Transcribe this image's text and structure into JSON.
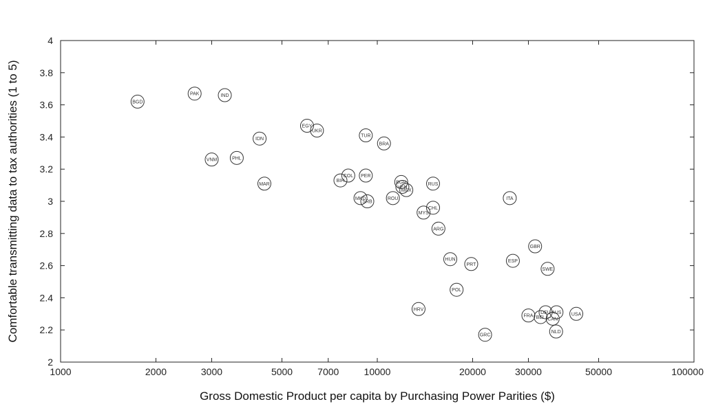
{
  "chart_data": {
    "type": "scatter",
    "title": "",
    "xlabel": "Gross Domestic Product per capita by Purchasing Power Parities ($)",
    "ylabel": "Comfortable transmitting data to tax authorities (1 to 5)",
    "xscale": "log",
    "xlim": [
      1000,
      100000
    ],
    "ylim": [
      2,
      4
    ],
    "grid": false,
    "xticks": [
      1000,
      2000,
      3000,
      5000,
      7000,
      10000,
      20000,
      30000,
      50000,
      100000
    ],
    "xtick_labels": [
      "1000",
      "2000",
      "3000",
      "5000",
      "7000",
      "10000",
      "20000",
      "30000",
      "50000",
      "100000"
    ],
    "yticks": [
      2,
      2.2,
      2.4,
      2.6,
      2.8,
      3,
      3.2,
      3.4,
      3.6,
      3.8,
      4
    ],
    "ytick_labels": [
      "2",
      "2.2",
      "2.4",
      "2.6",
      "2.8",
      "3",
      "3.2",
      "3.4",
      "3.6",
      "3.8",
      "4"
    ],
    "points": [
      {
        "label": "BGD",
        "x": 1750,
        "y": 3.62
      },
      {
        "label": "PAK",
        "x": 2650,
        "y": 3.67
      },
      {
        "label": "IND",
        "x": 3300,
        "y": 3.66
      },
      {
        "label": "VNM",
        "x": 3000,
        "y": 3.26
      },
      {
        "label": "PHL",
        "x": 3600,
        "y": 3.27
      },
      {
        "label": "IDN",
        "x": 4250,
        "y": 3.39
      },
      {
        "label": "MAR",
        "x": 4400,
        "y": 3.11
      },
      {
        "label": "EGY",
        "x": 6000,
        "y": 3.47
      },
      {
        "label": "UKR",
        "x": 6450,
        "y": 3.44
      },
      {
        "label": "TUR",
        "x": 9200,
        "y": 3.41
      },
      {
        "label": "BRA",
        "x": 10500,
        "y": 3.36
      },
      {
        "label": "COL",
        "x": 8100,
        "y": 3.16
      },
      {
        "label": "BIH",
        "x": 7650,
        "y": 3.13
      },
      {
        "label": "PER",
        "x": 9200,
        "y": 3.16
      },
      {
        "label": "BGR",
        "x": 11900,
        "y": 3.12
      },
      {
        "label": "VEN",
        "x": 12000,
        "y": 3.09
      },
      {
        "label": "MEX",
        "x": 12350,
        "y": 3.07
      },
      {
        "label": "RUS",
        "x": 15000,
        "y": 3.11
      },
      {
        "label": "MKD",
        "x": 8850,
        "y": 3.02
      },
      {
        "label": "SRB",
        "x": 9300,
        "y": 3.0
      },
      {
        "label": "ROU",
        "x": 11200,
        "y": 3.02
      },
      {
        "label": "MYS",
        "x": 14000,
        "y": 2.93
      },
      {
        "label": "CHL",
        "x": 15000,
        "y": 2.96
      },
      {
        "label": "ARG",
        "x": 15600,
        "y": 2.83
      },
      {
        "label": "ITA",
        "x": 26200,
        "y": 3.02
      },
      {
        "label": "GBR",
        "x": 31500,
        "y": 2.72
      },
      {
        "label": "HUN",
        "x": 17000,
        "y": 2.64
      },
      {
        "label": "PRT",
        "x": 19800,
        "y": 2.61
      },
      {
        "label": "ESP",
        "x": 26800,
        "y": 2.63
      },
      {
        "label": "SWE",
        "x": 34500,
        "y": 2.58
      },
      {
        "label": "POL",
        "x": 17800,
        "y": 2.45
      },
      {
        "label": "HRV",
        "x": 13500,
        "y": 2.33
      },
      {
        "label": "GRC",
        "x": 21900,
        "y": 2.17
      },
      {
        "label": "FRA",
        "x": 30000,
        "y": 2.29
      },
      {
        "label": "DEU",
        "x": 34000,
        "y": 2.31
      },
      {
        "label": "BEL",
        "x": 32800,
        "y": 2.28
      },
      {
        "label": "AUS",
        "x": 36800,
        "y": 2.31
      },
      {
        "label": "CAN",
        "x": 35800,
        "y": 2.27
      },
      {
        "label": "NLD",
        "x": 36700,
        "y": 2.19
      },
      {
        "label": "USA",
        "x": 42500,
        "y": 2.3
      }
    ]
  }
}
